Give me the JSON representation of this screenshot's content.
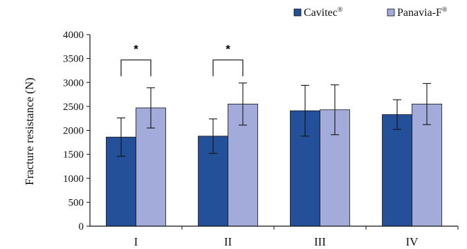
{
  "chart_data": {
    "type": "bar",
    "title": "",
    "xlabel": "",
    "ylabel": "Fracture resistance (N)",
    "categories": [
      "I",
      "II",
      "III",
      "IV"
    ],
    "ylim": [
      0,
      4000
    ],
    "yticks": [
      "0",
      "500",
      "1000",
      "1500",
      "2000",
      "2500",
      "3000",
      "3500",
      "4000"
    ],
    "grid": false,
    "legend_position": "top-right",
    "series": [
      {
        "name": "Cavitec",
        "name_sup": "®",
        "color": "#24509a",
        "values": [
          1860,
          1880,
          2410,
          2330
        ],
        "error": [
          400,
          360,
          530,
          310
        ]
      },
      {
        "name": "Panavia-F",
        "name_sup": "®",
        "color": "#a3abdb",
        "values": [
          2470,
          2550,
          2430,
          2550
        ],
        "error": [
          420,
          440,
          520,
          430
        ]
      }
    ],
    "significance": [
      {
        "category": "I",
        "label": "*"
      },
      {
        "category": "II",
        "label": "*"
      }
    ]
  }
}
